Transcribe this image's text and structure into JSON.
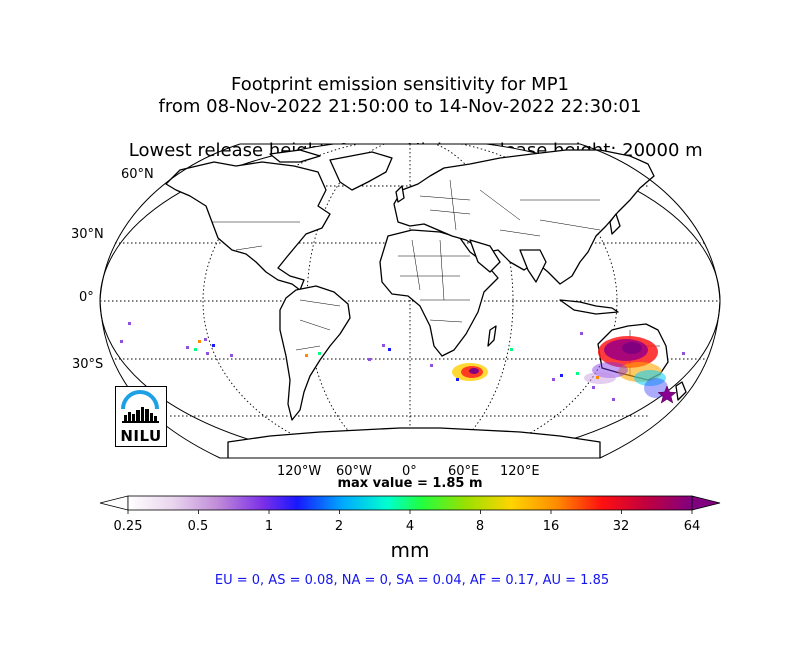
{
  "title": {
    "line1": "Footprint emission sensitivity for MP1",
    "line2": "from 08-Nov-2022 21:50:00 to 14-Nov-2022 22:30:01",
    "line3_left": "Lowest release height: 0 m",
    "line3_right": "Highest release height: 20000 m"
  },
  "map": {
    "projection": "Robinson",
    "lat_labels": [
      "60°N",
      "30°N",
      "0°",
      "30°S"
    ],
    "lon_labels": [
      "120°W",
      "60°W",
      "0°",
      "60°E",
      "120°E"
    ],
    "marker": "star-icon",
    "max_value_text": "max value = 1.85 m"
  },
  "colorbar": {
    "ticks": [
      "0.25",
      "0.5",
      "1",
      "2",
      "4",
      "8",
      "16",
      "32",
      "64"
    ],
    "units": "mm",
    "colors": [
      "#ffffff",
      "#c89ad8",
      "#8a2be2",
      "#1a1aff",
      "#00c0ff",
      "#00ff80",
      "#9be000",
      "#ffd000",
      "#ff8c00",
      "#ff1a1a",
      "#a00060",
      "#800080"
    ]
  },
  "summary": "EU = 0,  AS = 0.08,  NA = 0,  SA = 0.04,  AF = 0.17,  AU = 1.85",
  "logo": {
    "text": "NILU"
  }
}
